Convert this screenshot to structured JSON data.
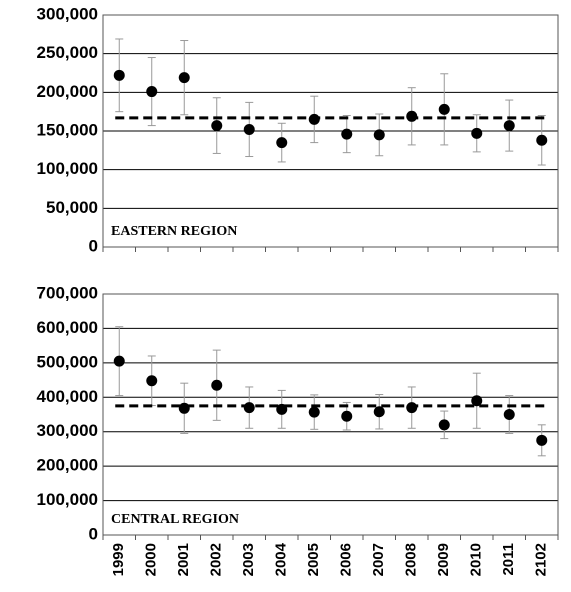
{
  "chart_data": [
    {
      "type": "scatter",
      "label": "EASTERN REGION",
      "values": [
        222000,
        201000,
        219000,
        157000,
        152000,
        135000,
        165000,
        146000,
        145000,
        169000,
        178000,
        147000,
        157000,
        138000
      ],
      "errors": [
        47000,
        44000,
        48000,
        36000,
        35000,
        25000,
        30000,
        24000,
        27000,
        37000,
        46000,
        24000,
        33000,
        32000
      ],
      "mean": 167000,
      "color": "#000000",
      "error_color": "#999999",
      "ylim": [
        0,
        300000
      ],
      "yticks": [
        0,
        {
          "value": 50000,
          "label": "50,000"
        },
        {
          "value": 100000,
          "label": "100,000"
        },
        {
          "value": 150000,
          "label": "150,000"
        },
        {
          "value": 200000,
          "label": "200,000"
        },
        {
          "value": 250000,
          "label": "250,000"
        },
        {
          "value": 300000,
          "label": "300,000"
        }
      ],
      "grid": true
    },
    {
      "type": "scatter",
      "label": "CENTRAL REGION",
      "categories": [
        "1999",
        "2000",
        "2001",
        "2002",
        "2003",
        "2004",
        "2005",
        "2006",
        "2007",
        "2008",
        "2009",
        "2010",
        "2011",
        "2102"
      ],
      "values": [
        505000,
        448000,
        368000,
        435000,
        370000,
        365000,
        357000,
        345000,
        358000,
        370000,
        320000,
        390000,
        350000,
        275000
      ],
      "errors": [
        100000,
        72000,
        73000,
        102000,
        60000,
        55000,
        50000,
        40000,
        50000,
        60000,
        40000,
        80000,
        55000,
        45000
      ],
      "mean": 375000,
      "color": "#000000",
      "error_color": "#999999",
      "ylim": [
        0,
        700000
      ],
      "yticks": [
        0,
        {
          "value": 100000,
          "label": "100,000"
        },
        {
          "value": 200000,
          "label": "200,000"
        },
        {
          "value": 300000,
          "label": "300,000"
        },
        {
          "value": 400000,
          "label": "400,000"
        },
        {
          "value": 500000,
          "label": "500,000"
        },
        {
          "value": 600000,
          "label": "600,000"
        },
        {
          "value": 700000,
          "label": "700,000"
        }
      ],
      "grid": true
    }
  ]
}
